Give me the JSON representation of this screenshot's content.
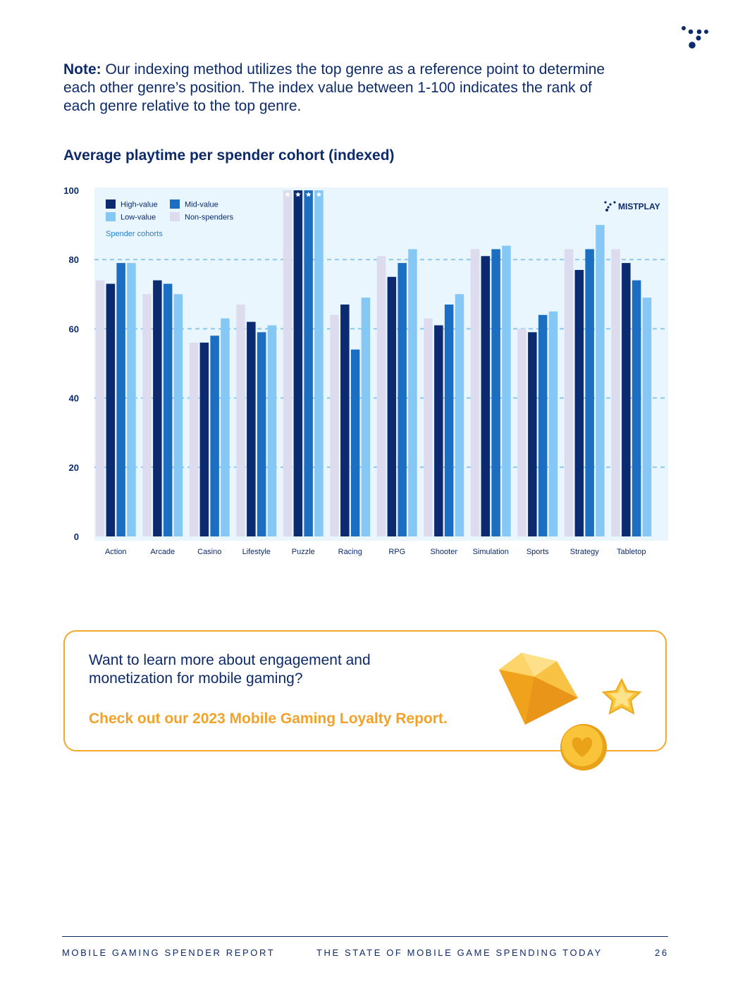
{
  "note": {
    "label": "Note:",
    "text": " Our indexing method utilizes the top genre as a reference point to determine each other genre’s position. The index value between 1-100 indicates the rank of each genre relative to the top genre."
  },
  "chart_title": "Average playtime per spender cohort (indexed)",
  "colors": {
    "high": "#0b2a6f",
    "mid": "#1c6ec2",
    "low": "#85c8f5",
    "non": "#dddcef",
    "plot_bg": "#eaf6fd",
    "grid": "#8cc8ee"
  },
  "chart_data": {
    "type": "bar",
    "title": "Average playtime per spender cohort (indexed)",
    "xlabel": "",
    "ylabel": "",
    "ylim": [
      0,
      100
    ],
    "yticks": [
      0,
      20,
      40,
      60,
      80,
      100
    ],
    "grid": "dashed at 20, 40, 60, 80",
    "legend_title": "Spender cohorts",
    "legend_position": "top-left",
    "watermark": "MISTPLAY",
    "categories": [
      "Action",
      "Arcade",
      "Casino",
      "Lifestyle",
      "Puzzle",
      "Racing",
      "RPG",
      "Shooter",
      "Simulation",
      "Sports",
      "Strategy",
      "Tabletop"
    ],
    "series": [
      {
        "name": "Non-spenders",
        "key": "non",
        "values": [
          74,
          70,
          56,
          67,
          100,
          64,
          81,
          63,
          83,
          60,
          83,
          83
        ]
      },
      {
        "name": "High-value",
        "key": "high",
        "values": [
          73,
          74,
          56,
          62,
          100,
          67,
          75,
          61,
          81,
          59,
          77,
          79
        ]
      },
      {
        "name": "Mid-value",
        "key": "mid",
        "values": [
          79,
          73,
          58,
          59,
          100,
          54,
          79,
          67,
          83,
          64,
          83,
          74
        ]
      },
      {
        "name": "Low-value",
        "key": "low",
        "values": [
          79,
          70,
          63,
          61,
          100,
          69,
          83,
          70,
          84,
          65,
          90,
          69
        ]
      }
    ],
    "top_genre_marker": "star",
    "top_genre": "Puzzle"
  },
  "cta": {
    "question": "Want to learn more about engagement and monetization for mobile gaming?",
    "link": "Check out our 2023 Mobile Gaming Loyalty Report."
  },
  "footer": {
    "left": "MOBILE GAMING SPENDER REPORT",
    "center": "THE STATE OF MOBILE GAME SPENDING TODAY",
    "page": "26"
  }
}
